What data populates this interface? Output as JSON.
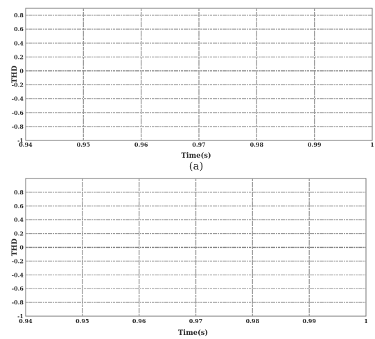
{
  "chart_data": [
    {
      "type": "line",
      "xlabel": "Time(s)",
      "ylabel": "THD",
      "caption": "(a)",
      "xlim": [
        0.94,
        1.0
      ],
      "ylim": [
        -1,
        0.9
      ],
      "xticks": [
        0.94,
        0.95,
        0.96,
        0.97,
        0.98,
        0.99,
        1
      ],
      "xtick_labels": [
        "0.94",
        "0.95",
        "0.96",
        "0.97",
        "0.98",
        "0.99",
        "1"
      ],
      "yticks": [
        0.8,
        0.6,
        0.4,
        0.2,
        0,
        -0.2,
        -0.4,
        -0.6,
        -0.8,
        -1
      ],
      "ytick_labels": [
        "0.8",
        "0.6",
        "0.4",
        "0.2",
        "0",
        "-0.2",
        "-0.4",
        "-0.6",
        "-0.8",
        "-1"
      ],
      "grid": true
    },
    {
      "type": "line",
      "xlabel": "Time(s)",
      "ylabel": "THD",
      "caption": "",
      "xlim": [
        0.94,
        1.0
      ],
      "ylim": [
        -1,
        1.0
      ],
      "xticks": [
        0.94,
        0.95,
        0.96,
        0.97,
        0.98,
        0.99,
        1
      ],
      "xtick_labels": [
        "0.94",
        "0.95",
        "0.96",
        "0.97",
        "0.98",
        "0.99",
        "1"
      ],
      "yticks": [
        0.8,
        0.6,
        0.4,
        0.2,
        0,
        -0.2,
        -0.4,
        -0.6,
        -0.8,
        -1
      ],
      "ytick_labels": [
        "0.8",
        "0.6",
        "0.4",
        "0.2",
        "0",
        "-0.2",
        "-0.4",
        "-0.6",
        "-0.8",
        "-1"
      ],
      "grid": true
    }
  ]
}
